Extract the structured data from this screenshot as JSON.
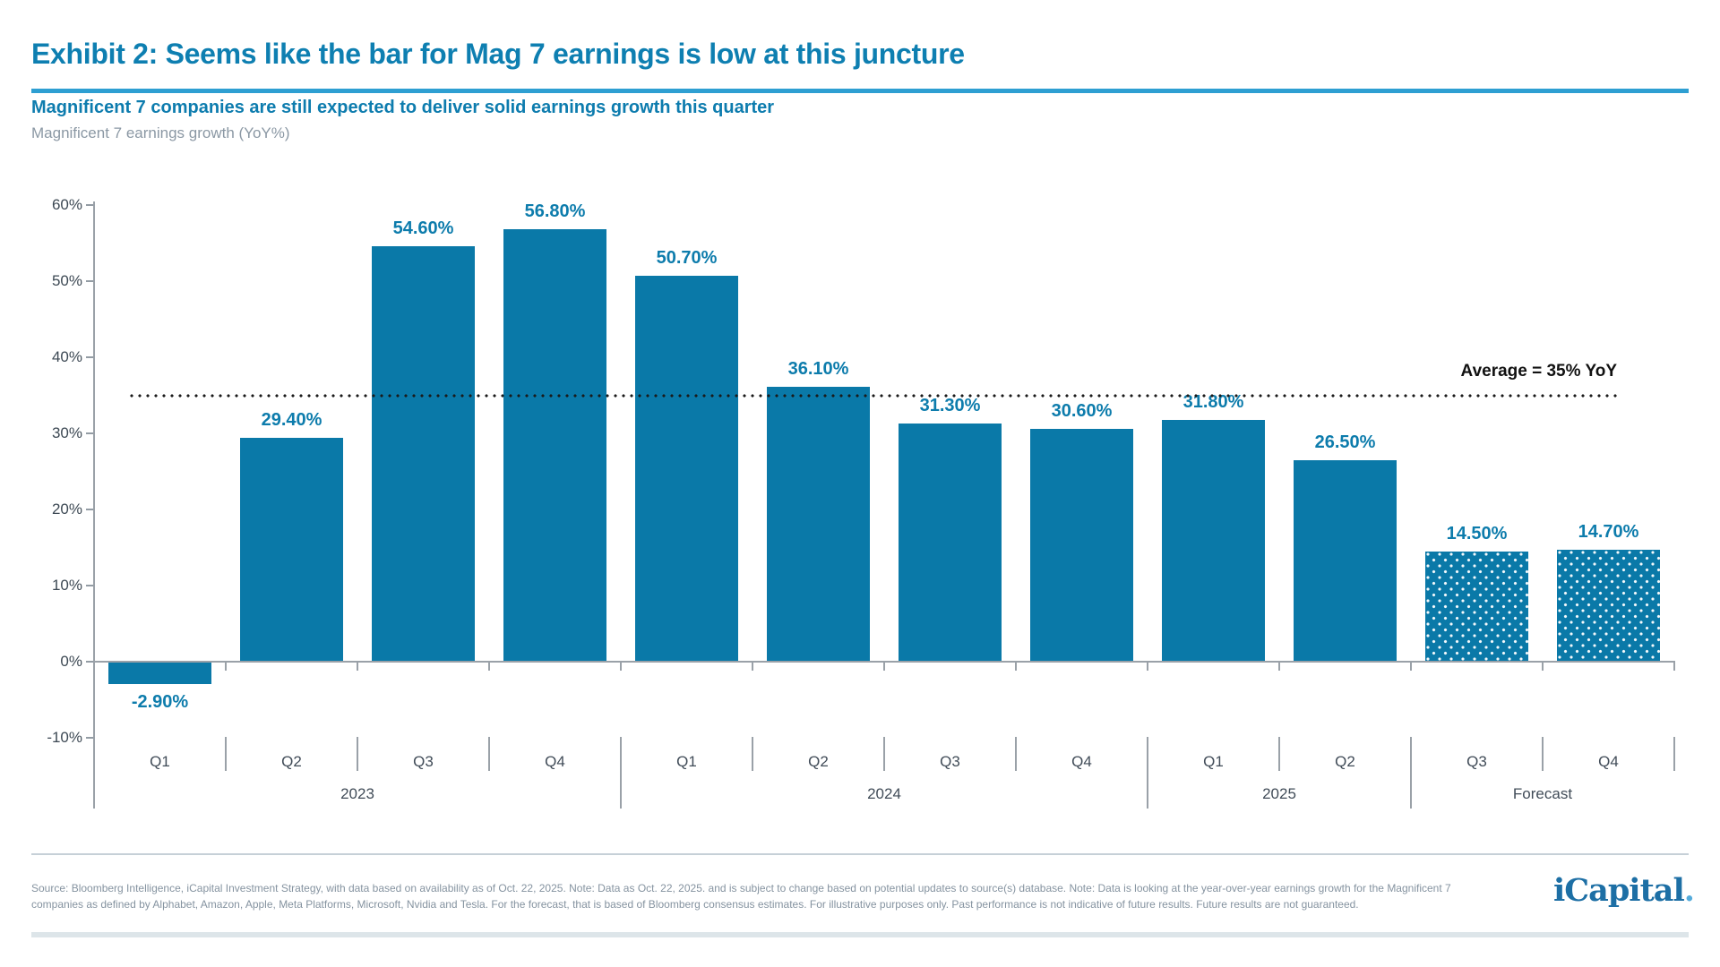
{
  "header": {
    "title": "Exhibit 2: Seems like the bar for Mag 7 earnings is low at this juncture",
    "subtitle": "Magnificent 7 companies are still expected to deliver solid earnings growth this quarter"
  },
  "chart_data": {
    "type": "bar",
    "title": "Magnificent 7 earnings growth (YoY%)",
    "ylim": [
      -10,
      60
    ],
    "grid": false,
    "yticks": [
      {
        "v": 60,
        "label": "60%"
      },
      {
        "v": 50,
        "label": "50%"
      },
      {
        "v": 40,
        "label": "40%"
      },
      {
        "v": 30,
        "label": "30%"
      },
      {
        "v": 20,
        "label": "20%"
      },
      {
        "v": 10,
        "label": "10%"
      },
      {
        "v": 0,
        "label": "0%"
      },
      {
        "v": -10,
        "label": "-10%"
      }
    ],
    "categories": [
      "Q1",
      "Q2",
      "Q3",
      "Q4",
      "Q1",
      "Q2",
      "Q3",
      "Q4",
      "Q1",
      "Q2",
      "Q3",
      "Q4"
    ],
    "values": [
      -2.9,
      29.4,
      54.6,
      56.8,
      50.7,
      36.1,
      31.3,
      30.6,
      31.8,
      26.5,
      14.5,
      14.7
    ],
    "value_labels": [
      "-2.90%",
      "29.40%",
      "54.60%",
      "56.80%",
      "50.70%",
      "36.10%",
      "31.30%",
      "30.60%",
      "31.80%",
      "26.50%",
      "14.50%",
      "14.70%"
    ],
    "forecast_mask": [
      false,
      false,
      false,
      false,
      false,
      false,
      false,
      false,
      false,
      false,
      true,
      true
    ],
    "groups": [
      {
        "label": "2023",
        "span": 4
      },
      {
        "label": "2024",
        "span": 4
      },
      {
        "label": "2025",
        "span": 2
      },
      {
        "label": "Forecast",
        "span": 2
      }
    ],
    "average_line": {
      "value": 35,
      "label": "Average = 35% YoY"
    },
    "bar_color": "#0a79a8",
    "forecast_fill": "white-dots-on-teal"
  },
  "colors": {
    "bar_teal": "#0a79a8",
    "title_teal": "#0e7fb1",
    "accent_rule_blue": "#2e9fd2",
    "average_line_black": "#111111",
    "axis_gray": "#9aa1a8",
    "footer_gray": "#8593a0",
    "logo_blue": "#1d6fa5",
    "logo_dot_blue": "#54abdb"
  },
  "footer": {
    "source_line1": "Source: Bloomberg Intelligence, iCapital Investment Strategy, with data based on availability as of Oct. 22, 2025. Note: Data as Oct. 22, 2025. and is subject to change based on potential updates to source(s) database. Note: Data is looking at the year-over-year earnings growth for the Magnificent 7",
    "source_line2": "companies as defined by Alphabet, Amazon, Apple, Meta Platforms, Microsoft, Nvidia and Tesla. For the forecast, that is based of Bloomberg consensus estimates. For illustrative purposes only. Past performance is not indicative of future results. Future results are not guaranteed.",
    "logo_text": "iCapital",
    "logo_suffix": "."
  }
}
